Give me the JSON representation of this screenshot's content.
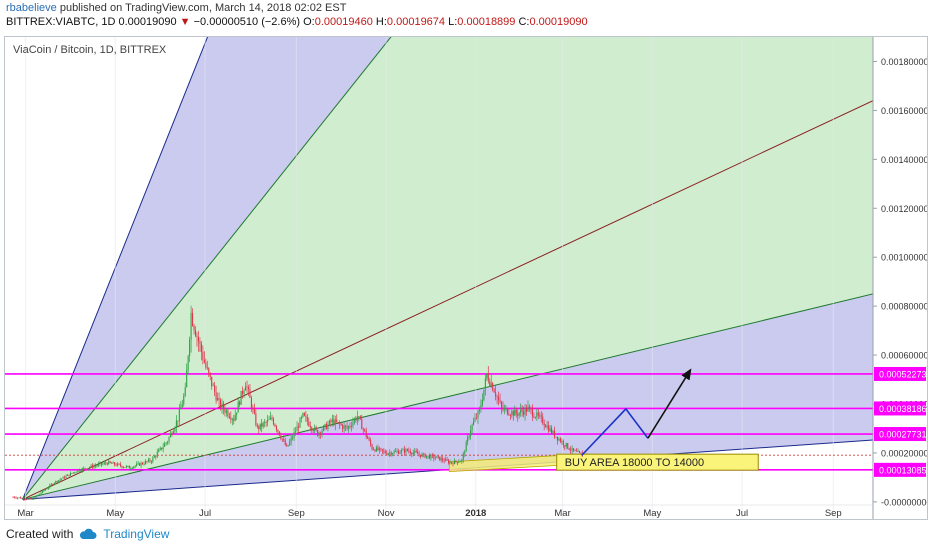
{
  "header": {
    "author": "rbabelieve",
    "published_text": "published on TradingView.com, March 14, 2018 02:02 EST",
    "ticker": "BITTREX:VIABTC, 1D",
    "last": "0.00019090",
    "change_arrow": "▼",
    "change": "−0.00000510 (−2.6%)",
    "o_label": "O:",
    "o_value": "0.00019460",
    "h_label": "H:",
    "h_value": "0.00019674",
    "l_label": "L:",
    "l_value": "0.00018899",
    "c_label": "C:",
    "c_value": "0.00019090"
  },
  "footer": {
    "created_with": "Created with",
    "brand": "TradingView",
    "logo_icon": "tradingview-cloud-icon"
  },
  "colors": {
    "fan_blue": "#c8c8ef",
    "fan_green": "#cdeccd",
    "magenta": "#ff00ff",
    "up": "#2ea043",
    "down": "#e0344a",
    "zone": "#f3ec78"
  },
  "chart_data": {
    "type": "candlestick",
    "title": "ViaCoin  / Bitcoin, 1D, BITTREX",
    "x_tick_labels": [
      "Mar",
      "May",
      "Jul",
      "Sep",
      "Nov",
      "2018",
      "Mar",
      "May",
      "Jul",
      "Sep"
    ],
    "y_ticks": [
      0.0018,
      0.0016,
      0.0014,
      0.0012,
      0.001,
      0.0008,
      0.0006,
      0.0004,
      0.0002,
      0
    ],
    "y_tick_labels": [
      "0.00180000",
      "0.00160000",
      "0.00140000",
      "0.00120000",
      "0.00100000",
      "0.00080000",
      "0.00060000",
      "0.00040000",
      "0.00020000",
      "-0.00000000"
    ],
    "ylim": [
      -7e-05,
      0.0019
    ],
    "horizontal_levels": [
      {
        "value": 0.00052273,
        "label": "0.00052273"
      },
      {
        "value": 0.00038186,
        "label": "0.00038186"
      },
      {
        "value": 0.00027731,
        "label": "0.00027731"
      },
      {
        "value": 0.00013085,
        "label": "0.00013085"
      }
    ],
    "last_price_line": 0.0001909,
    "annotation": "BUY AREA 18000 TO 14000",
    "buy_area": [
      0.00014,
      0.00018
    ],
    "price_path": [
      [
        "2017-02-20",
        2e-05
      ],
      [
        "2017-03-05",
        1e-05
      ],
      [
        "2017-03-20",
        8e-05
      ],
      [
        "2017-04-05",
        0.00013
      ],
      [
        "2017-04-25",
        0.00016
      ],
      [
        "2017-05-10",
        0.00014
      ],
      [
        "2017-05-25",
        0.00017
      ],
      [
        "2017-06-05",
        0.00025
      ],
      [
        "2017-06-12",
        0.00034
      ],
      [
        "2017-06-17",
        0.00045
      ],
      [
        "2017-06-21",
        0.00077
      ],
      [
        "2017-06-25",
        0.00068
      ],
      [
        "2017-07-01",
        0.00055
      ],
      [
        "2017-07-10",
        0.0004
      ],
      [
        "2017-07-20",
        0.00034
      ],
      [
        "2017-07-28",
        0.00049
      ],
      [
        "2017-08-05",
        0.0003
      ],
      [
        "2017-08-15",
        0.00034
      ],
      [
        "2017-08-25",
        0.00022
      ],
      [
        "2017-09-05",
        0.00035
      ],
      [
        "2017-09-15",
        0.00028
      ],
      [
        "2017-09-25",
        0.00033
      ],
      [
        "2017-10-05",
        0.0003
      ],
      [
        "2017-10-12",
        0.00035
      ],
      [
        "2017-10-22",
        0.00022
      ],
      [
        "2017-11-01",
        0.0002
      ],
      [
        "2017-11-15",
        0.00021
      ],
      [
        "2017-11-25",
        0.00019
      ],
      [
        "2017-12-05",
        0.00018
      ],
      [
        "2017-12-15",
        0.00016
      ],
      [
        "2017-12-22",
        0.00017
      ],
      [
        "2017-12-28",
        0.0003
      ],
      [
        "2018-01-03",
        0.00037
      ],
      [
        "2018-01-08",
        0.00052
      ],
      [
        "2018-01-13",
        0.00046
      ],
      [
        "2018-01-18",
        0.00038
      ],
      [
        "2018-01-28",
        0.00036
      ],
      [
        "2018-02-05",
        0.00038
      ],
      [
        "2018-02-15",
        0.00033
      ],
      [
        "2018-02-22",
        0.00028
      ],
      [
        "2018-03-01",
        0.00024
      ],
      [
        "2018-03-07",
        0.00021
      ],
      [
        "2018-03-14",
        0.00019
      ]
    ],
    "projection": [
      [
        "2018-03-14",
        0.00019
      ],
      [
        "2018-04-13",
        0.00038
      ],
      [
        "2018-04-28",
        0.00026
      ],
      [
        "2018-05-27",
        0.00054
      ]
    ],
    "gann_fan": {
      "origin": [
        "2017-02-27",
        1e-05
      ],
      "rays": [
        {
          "through": [
            "2017-06-30",
            0.00186
          ],
          "color": "#1a2a8a"
        },
        {
          "through": [
            "2017-10-30",
            0.00186
          ],
          "color": "#1f7a2e"
        },
        {
          "through": [
            "2018-09-21",
            0.00162
          ],
          "color": "#8a2020"
        },
        {
          "through": [
            "2018-09-21",
            0.00084
          ],
          "color": "#1f7a2e"
        },
        {
          "through": [
            "2018-09-21",
            0.00025
          ],
          "color": "#1a2a8a"
        }
      ]
    }
  }
}
